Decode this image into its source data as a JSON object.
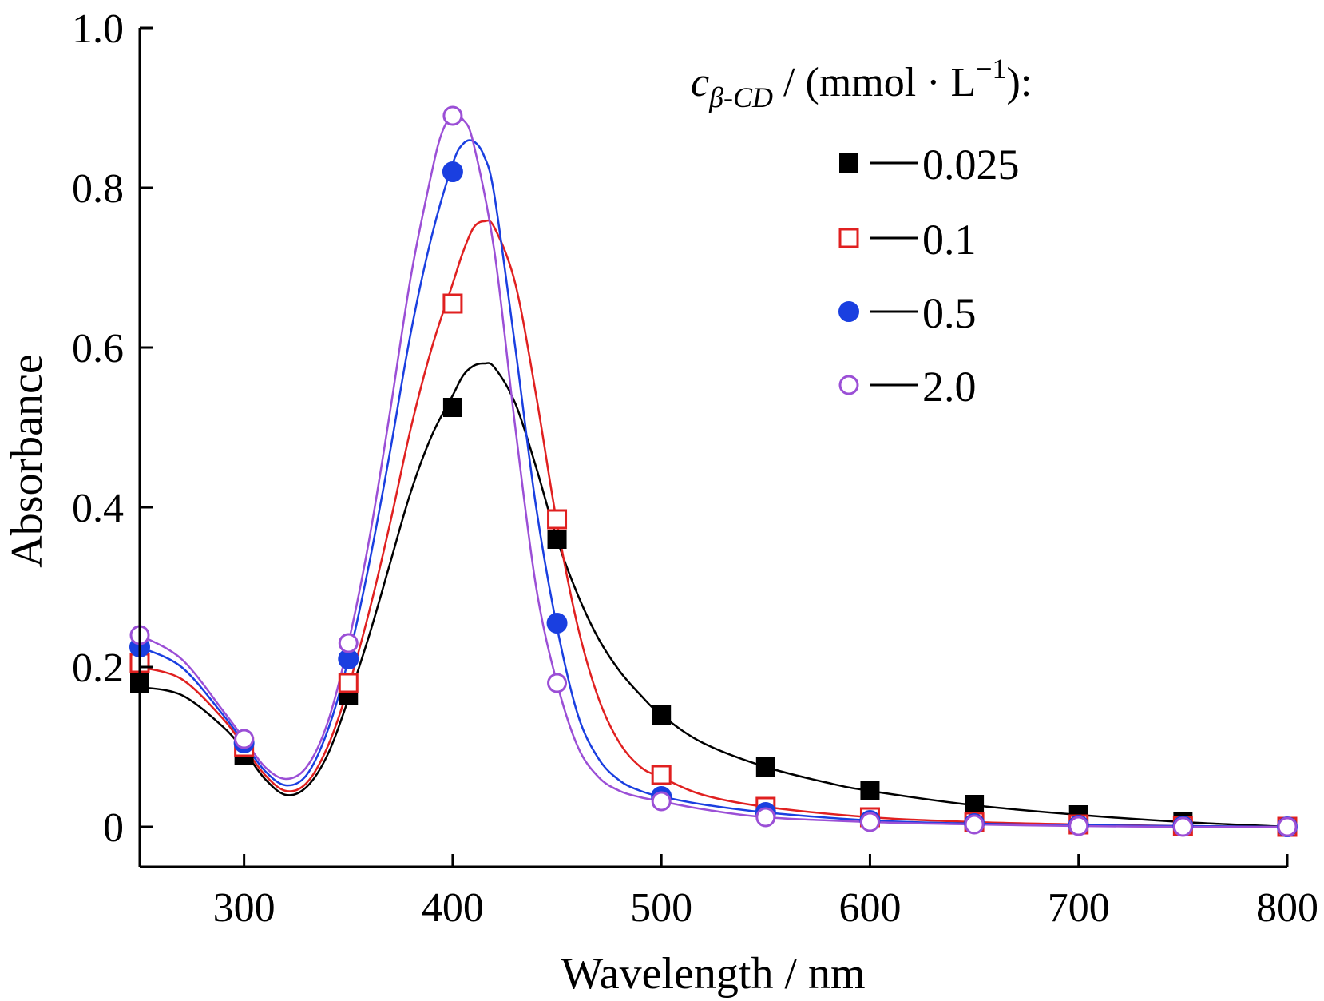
{
  "chart_data": {
    "type": "line",
    "xlabel": "Wavelength / nm",
    "ylabel": "Absorbance",
    "xlim": [
      250,
      800
    ],
    "ylim": [
      -0.05,
      1.0
    ],
    "x_ticks": [
      300,
      400,
      500,
      600,
      700,
      800
    ],
    "x_tick_labels": [
      "300",
      "400",
      "500",
      "600",
      "700",
      "800"
    ],
    "y_ticks": [
      0,
      0.2,
      0.4,
      0.6,
      0.8,
      1.0
    ],
    "y_tick_labels": [
      "0",
      "0.2",
      "0.4",
      "0.6",
      "0.8",
      "1.0"
    ],
    "grid": false,
    "legend": {
      "title_var": "c",
      "title_sub": "β-CD",
      "title_unit_open": " / (mmol · L",
      "title_sup": "−1",
      "title_unit_close": "):",
      "placement": "top-right"
    },
    "series": [
      {
        "name": "0.025",
        "color": "#000000",
        "marker": "square-filled",
        "curve_x": [
          250,
          270,
          290,
          300,
          310,
          320,
          330,
          340,
          350,
          360,
          370,
          380,
          390,
          400,
          405,
          410,
          415,
          420,
          430,
          440,
          450,
          460,
          470,
          480,
          490,
          500,
          520,
          550,
          580,
          600,
          650,
          700,
          750,
          800
        ],
        "curve_y": [
          0.175,
          0.165,
          0.125,
          0.095,
          0.06,
          0.04,
          0.05,
          0.09,
          0.16,
          0.24,
          0.33,
          0.42,
          0.49,
          0.54,
          0.565,
          0.577,
          0.58,
          0.575,
          0.53,
          0.45,
          0.36,
          0.29,
          0.235,
          0.195,
          0.165,
          0.14,
          0.105,
          0.075,
          0.055,
          0.045,
          0.027,
          0.015,
          0.006,
          0.0
        ],
        "marker_x": [
          250,
          300,
          350,
          400,
          450,
          500,
          550,
          600,
          650,
          700,
          750
        ],
        "marker_y": [
          0.18,
          0.09,
          0.165,
          0.525,
          0.36,
          0.14,
          0.075,
          0.045,
          0.028,
          0.015,
          0.006
        ]
      },
      {
        "name": "0.1",
        "color": "#e02020",
        "marker": "square-open",
        "curve_x": [
          250,
          270,
          290,
          300,
          310,
          320,
          330,
          340,
          350,
          360,
          370,
          380,
          390,
          400,
          405,
          410,
          415,
          420,
          430,
          440,
          450,
          460,
          470,
          480,
          490,
          500,
          520,
          550,
          600,
          650,
          700,
          750,
          800
        ],
        "curve_y": [
          0.2,
          0.185,
          0.135,
          0.1,
          0.065,
          0.045,
          0.055,
          0.1,
          0.175,
          0.27,
          0.38,
          0.5,
          0.6,
          0.68,
          0.72,
          0.75,
          0.758,
          0.75,
          0.68,
          0.54,
          0.38,
          0.25,
          0.16,
          0.105,
          0.075,
          0.062,
          0.04,
          0.025,
          0.012,
          0.006,
          0.003,
          0.001,
          0.0
        ],
        "marker_x": [
          250,
          300,
          350,
          400,
          450,
          500,
          550,
          600,
          650,
          700,
          750,
          800
        ],
        "marker_y": [
          0.205,
          0.1,
          0.18,
          0.655,
          0.385,
          0.065,
          0.025,
          0.012,
          0.006,
          0.003,
          0.001,
          0.0
        ]
      },
      {
        "name": "0.5",
        "color": "#1a3fe0",
        "marker": "circle-filled",
        "curve_x": [
          250,
          270,
          290,
          300,
          310,
          320,
          330,
          340,
          350,
          360,
          370,
          380,
          390,
          400,
          405,
          410,
          415,
          420,
          430,
          440,
          450,
          460,
          470,
          480,
          490,
          500,
          520,
          550,
          600,
          650,
          700,
          750,
          800
        ],
        "curve_y": [
          0.225,
          0.2,
          0.14,
          0.105,
          0.07,
          0.052,
          0.065,
          0.12,
          0.21,
          0.33,
          0.47,
          0.62,
          0.74,
          0.83,
          0.855,
          0.858,
          0.84,
          0.79,
          0.6,
          0.4,
          0.25,
          0.14,
          0.085,
          0.058,
          0.045,
          0.038,
          0.028,
          0.018,
          0.008,
          0.004,
          0.002,
          0.001,
          0.0
        ],
        "marker_x": [
          250,
          300,
          350,
          400,
          450,
          500,
          550,
          600,
          650,
          700,
          750,
          800
        ],
        "marker_y": [
          0.225,
          0.105,
          0.21,
          0.82,
          0.255,
          0.038,
          0.018,
          0.008,
          0.004,
          0.002,
          0.001,
          0.0
        ]
      },
      {
        "name": "2.0",
        "color": "#9b4fd6",
        "marker": "circle-open",
        "curve_x": [
          250,
          270,
          290,
          300,
          310,
          320,
          330,
          340,
          350,
          360,
          370,
          380,
          390,
          395,
          400,
          405,
          410,
          420,
          430,
          440,
          450,
          460,
          470,
          480,
          490,
          500,
          520,
          550,
          600,
          650,
          700,
          750,
          800
        ],
        "curve_y": [
          0.24,
          0.21,
          0.145,
          0.11,
          0.075,
          0.06,
          0.075,
          0.13,
          0.23,
          0.36,
          0.52,
          0.69,
          0.82,
          0.87,
          0.89,
          0.885,
          0.855,
          0.72,
          0.5,
          0.3,
          0.18,
          0.1,
          0.062,
          0.045,
          0.037,
          0.032,
          0.022,
          0.012,
          0.006,
          0.003,
          0.001,
          0.0,
          0.0
        ],
        "marker_x": [
          250,
          300,
          350,
          400,
          450,
          500,
          550,
          600,
          650,
          700,
          750,
          800
        ],
        "marker_y": [
          0.24,
          0.11,
          0.23,
          0.89,
          0.18,
          0.032,
          0.012,
          0.006,
          0.003,
          0.001,
          0.0,
          0.0
        ]
      }
    ]
  }
}
